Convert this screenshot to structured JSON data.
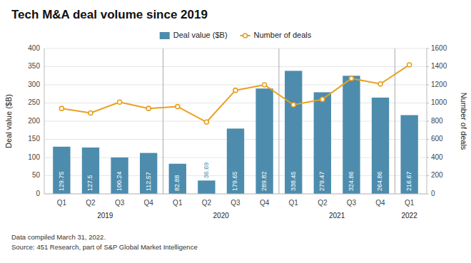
{
  "chart_data": {
    "type": "bar",
    "title": "Tech M&A deal volume since 2019",
    "categories": [
      "Q1",
      "Q2",
      "Q3",
      "Q4",
      "Q1",
      "Q2",
      "Q3",
      "Q4",
      "Q1",
      "Q2",
      "Q3",
      "Q4",
      "Q1"
    ],
    "groups": [
      {
        "label": "2019",
        "count": 4
      },
      {
        "label": "2020",
        "count": 4
      },
      {
        "label": "2021",
        "count": 4
      },
      {
        "label": "2022",
        "count": 1
      }
    ],
    "series": [
      {
        "name": "Deal value ($B)",
        "type": "bar",
        "color": "#4d8cad",
        "data_labels": true,
        "values": [
          129.75,
          127.5,
          100.24,
          112.57,
          82.88,
          36.69,
          179.65,
          289.82,
          338.45,
          279.47,
          324.86,
          264.86,
          216.67
        ]
      },
      {
        "name": "Number of deals",
        "type": "line",
        "color": "#e8a020",
        "axis": "y2",
        "marker": "circle",
        "values": [
          940,
          890,
          1010,
          940,
          960,
          790,
          1140,
          1200,
          980,
          1040,
          1270,
          1210,
          1420
        ]
      }
    ],
    "ylabel": "Deal value ($B)",
    "y2label": "Number of deals",
    "ylim": [
      0,
      400
    ],
    "yticks": [
      0,
      50,
      100,
      150,
      200,
      250,
      300,
      350,
      400
    ],
    "y2lim": [
      0,
      1600
    ],
    "y2ticks": [
      0,
      200,
      400,
      600,
      800,
      1000,
      1200,
      1400,
      1600
    ],
    "grid": true,
    "legend": "top",
    "notes": [
      "Data compiled March 31, 2022.",
      "Source: 451 Research, part of S&P Global Market Intelligence"
    ]
  }
}
